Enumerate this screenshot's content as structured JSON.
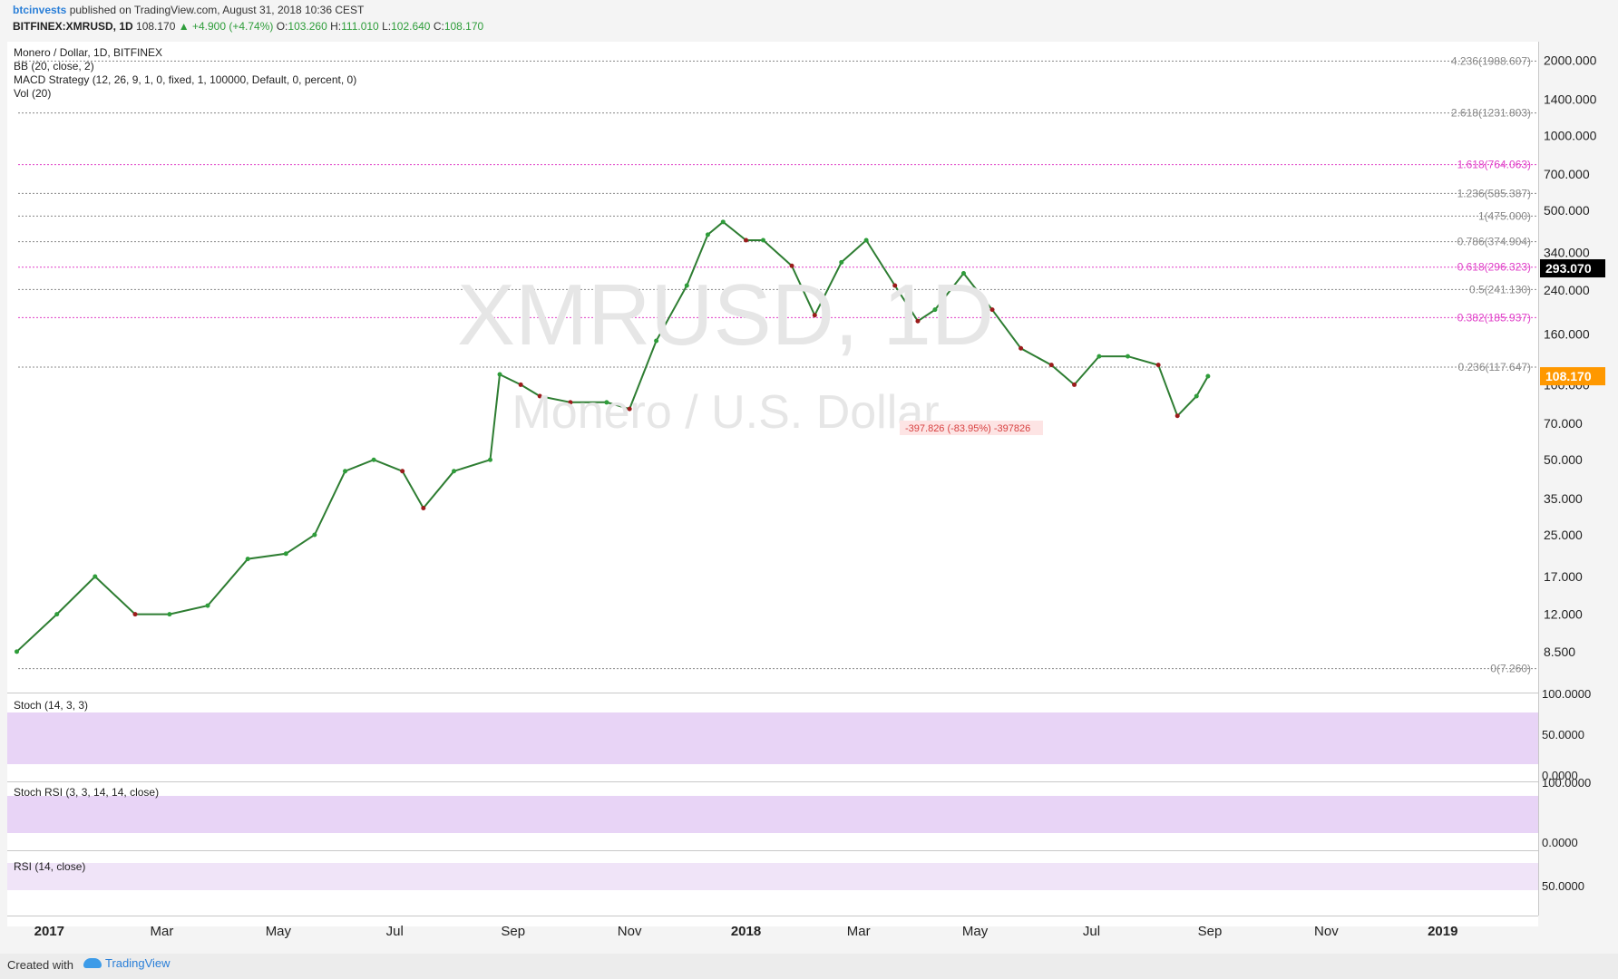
{
  "header": {
    "publisher": "btcinvests",
    "published_text": "published on TradingView.com, August 31, 2018 10:36 CEST",
    "symbol_line": "BITFINEX:XMRUSD, 1D",
    "last": "108.170",
    "change": "▲ +4.900 (+4.74%)",
    "open_label": "O:",
    "open": "103.260",
    "high_label": "H:",
    "high": "111.010",
    "low_label": "L:",
    "low": "102.640",
    "close_label": "C:",
    "close": "108.170"
  },
  "legend": {
    "title": "Monero / Dollar, 1D, BITFINEX",
    "bb": "BB (20, close, 2)",
    "macd": "MACD Strategy (12, 26, 9, 1, 0, fixed, 1, 100000, Default, 0, percent, 0)",
    "vol": "Vol (20)"
  },
  "watermark": {
    "symbol": "XMRUSD, 1D",
    "name": "Monero / U.S. Dollar"
  },
  "chart_data": {
    "type": "line",
    "title": "Monero / Dollar, 1D, BITFINEX",
    "x": [
      "2016-12-15",
      "2017-01-05",
      "2017-01-25",
      "2017-02-15",
      "2017-03-05",
      "2017-03-25",
      "2017-04-15",
      "2017-05-05",
      "2017-05-20",
      "2017-06-05",
      "2017-06-20",
      "2017-07-05",
      "2017-07-16",
      "2017-08-01",
      "2017-08-20",
      "2017-08-25",
      "2017-09-05",
      "2017-09-15",
      "2017-10-01",
      "2017-10-20",
      "2017-11-01",
      "2017-11-15",
      "2017-12-01",
      "2017-12-12",
      "2017-12-20",
      "2018-01-01",
      "2018-01-10",
      "2018-01-25",
      "2018-02-06",
      "2018-02-20",
      "2018-03-05",
      "2018-03-20",
      "2018-04-01",
      "2018-04-10",
      "2018-04-25",
      "2018-05-10",
      "2018-05-25",
      "2018-06-10",
      "2018-06-22",
      "2018-07-05",
      "2018-07-20",
      "2018-08-05",
      "2018-08-15",
      "2018-08-25",
      "2018-08-31"
    ],
    "y": [
      8.5,
      12,
      17,
      12,
      12,
      13,
      20,
      21,
      25,
      45,
      50,
      45,
      32,
      45,
      50,
      110,
      100,
      90,
      85,
      85,
      80,
      150,
      250,
      400,
      450,
      380,
      380,
      300,
      190,
      310,
      380,
      250,
      180,
      200,
      280,
      200,
      140,
      120,
      100,
      130,
      130,
      120,
      75,
      90,
      108.17
    ],
    "ylim": [
      7,
      2300
    ],
    "log_scale": true,
    "price_axis": [
      "2000.000",
      "1400.000",
      "1000.000",
      "700.000",
      "500.000",
      "340.000",
      "240.000",
      "160.000",
      "100.000",
      "70.000",
      "50.000",
      "35.000",
      "25.000",
      "17.000",
      "12.000",
      "8.500"
    ],
    "price_axis_values": [
      2000,
      1400,
      1000,
      700,
      500,
      340,
      240,
      160,
      100,
      70,
      50,
      35,
      25,
      17,
      12,
      8.5
    ],
    "time_axis": [
      "2017",
      "Mar",
      "May",
      "Jul",
      "Sep",
      "Nov",
      "2018",
      "Mar",
      "May",
      "Jul",
      "Sep",
      "Nov",
      "2019"
    ],
    "time_axis_dates": [
      "2017-01-01",
      "2017-03-01",
      "2017-05-01",
      "2017-07-01",
      "2017-09-01",
      "2017-11-01",
      "2018-01-01",
      "2018-03-01",
      "2018-05-01",
      "2018-07-01",
      "2018-09-01",
      "2018-11-01",
      "2019-01-01"
    ],
    "time_axis_bold": [
      true,
      false,
      false,
      false,
      false,
      false,
      true,
      false,
      false,
      false,
      false,
      false,
      true
    ],
    "fib_levels": [
      {
        "label": "4.236(1988.607)",
        "value": 1988.607,
        "color": "#888888"
      },
      {
        "label": "2.618(1231.803)",
        "value": 1231.803,
        "color": "#888888"
      },
      {
        "label": "1.618(764.063)",
        "value": 764.063,
        "color": "#e040c8"
      },
      {
        "label": "1.236(585.387)",
        "value": 585.387,
        "color": "#888888"
      },
      {
        "label": "1(475.000)",
        "value": 475.0,
        "color": "#888888"
      },
      {
        "label": "0.786(374.904)",
        "value": 374.904,
        "color": "#888888"
      },
      {
        "label": "0.618(296.323)",
        "value": 296.323,
        "color": "#e040c8"
      },
      {
        "label": "0.5(241.130)",
        "value": 241.13,
        "color": "#888888"
      },
      {
        "label": "0.382(185.937)",
        "value": 185.937,
        "color": "#e040c8"
      },
      {
        "label": "0.236(117.647)",
        "value": 117.647,
        "color": "#888888"
      },
      {
        "label": "0(7.260)",
        "value": 7.26,
        "color": "#888888"
      }
    ],
    "price_tags": [
      {
        "label": "293.070",
        "value": 293.07,
        "bg": "#000000"
      },
      {
        "label": "108.170",
        "value": 108.17,
        "bg": "#ff9800"
      }
    ],
    "measure_label": "-397.826 (-83.95%) -397826"
  },
  "panels": {
    "stoch": {
      "label": "Stoch (14, 3, 3)",
      "axis": [
        "100.0000",
        "50.0000",
        "0.0000"
      ]
    },
    "stoch_rsi": {
      "label": "Stoch RSI (3, 3, 14, 14, close)",
      "axis": [
        "100.0000",
        "0.0000"
      ]
    },
    "rsi": {
      "label": "RSI (14, close)",
      "axis": [
        "50.0000"
      ]
    }
  },
  "colors": {
    "accent": "#b75cf0",
    "fib": "#e040c8",
    "up": "#2e9d3a",
    "down": "#9b1c1c",
    "ma": "#2a7fd8",
    "band_fill": "#e8d7f6"
  },
  "footer": {
    "created_with": "Created with",
    "brand": "TradingView"
  }
}
